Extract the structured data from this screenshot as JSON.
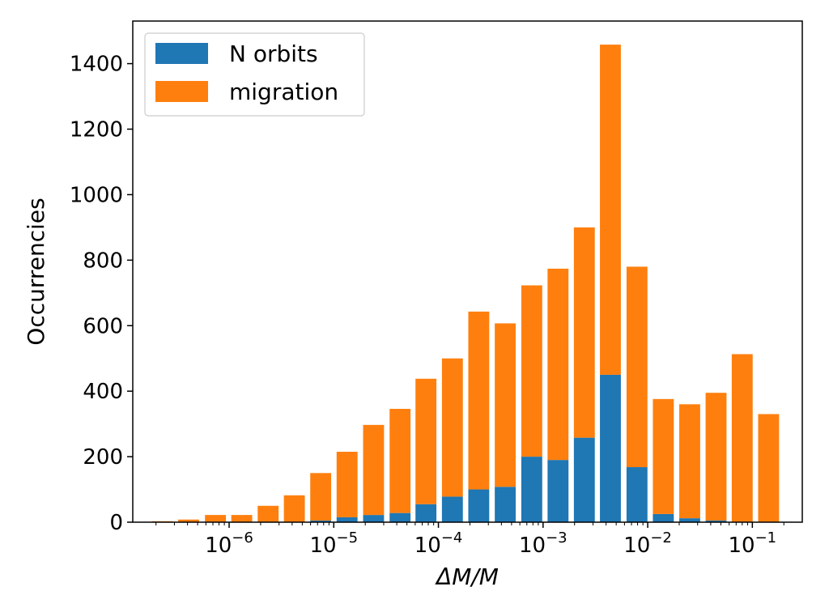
{
  "chart_data": {
    "type": "bar",
    "stacked": true,
    "xscale": "log",
    "xlabel": "ΔM/M",
    "ylabel": "Occurrencies",
    "xlim": [
      1.2e-07,
      0.3
    ],
    "ylim": [
      0,
      1530
    ],
    "yticks": [
      0,
      200,
      400,
      600,
      800,
      1000,
      1200,
      1400
    ],
    "xticks": [
      {
        "base": "10",
        "exp": "−6",
        "value": 1e-06
      },
      {
        "base": "10",
        "exp": "−5",
        "value": 1e-05
      },
      {
        "base": "10",
        "exp": "−4",
        "value": 0.0001
      },
      {
        "base": "10",
        "exp": "−3",
        "value": 0.001
      },
      {
        "base": "10",
        "exp": "−2",
        "value": 0.01
      },
      {
        "base": "10",
        "exp": "−1",
        "value": 0.1
      }
    ],
    "grid": false,
    "legend_position": "upper-left",
    "x": [
      2.3e-07,
      4.1e-07,
      7.4e-07,
      1.32e-06,
      2.36e-06,
      4.2e-06,
      7.5e-06,
      1.34e-05,
      2.4e-05,
      4.3e-05,
      7.6e-05,
      0.000136,
      0.000243,
      0.000435,
      0.00078,
      0.00139,
      0.00248,
      0.0044,
      0.0079,
      0.0141,
      0.0252,
      0.045,
      0.08,
      0.143
    ],
    "series": [
      {
        "name": "N orbits",
        "color": "#1f77b4",
        "values": [
          0,
          0,
          0,
          0,
          0,
          0,
          5,
          15,
          22,
          28,
          55,
          78,
          100,
          108,
          200,
          190,
          258,
          450,
          168,
          25,
          12,
          5,
          0,
          0
        ]
      },
      {
        "name": "migration",
        "color": "#ff7f0e",
        "values": [
          3,
          8,
          22,
          22,
          50,
          82,
          145,
          200,
          275,
          318,
          383,
          422,
          543,
          499,
          523,
          584,
          642,
          1008,
          612,
          351,
          348,
          390,
          513,
          330
        ]
      }
    ]
  }
}
